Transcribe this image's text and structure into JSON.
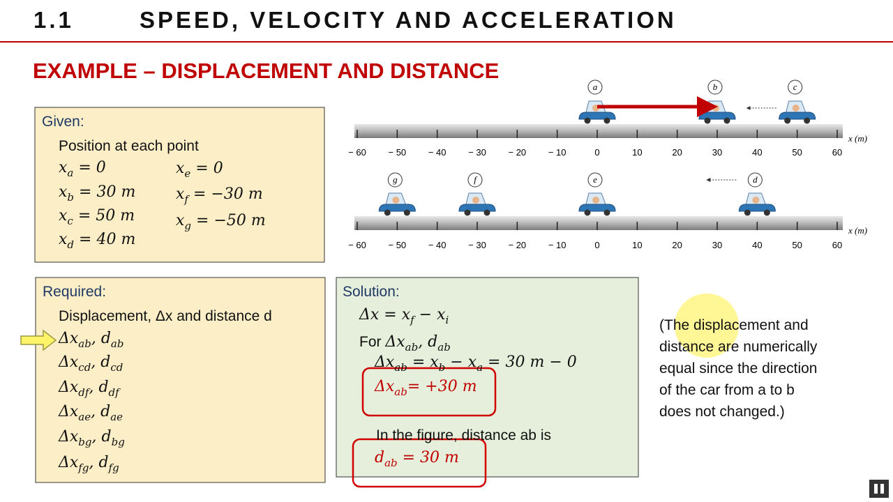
{
  "header": {
    "number": "1.1",
    "title": "SPEED, VELOCITY AND ACCELERATION"
  },
  "subtitle": "EXAMPLE – DISPLACEMENT AND DISTANCE",
  "given": {
    "heading": "Given:",
    "intro": "Position at each point",
    "left": [
      [
        "x",
        "a",
        " = 0"
      ],
      [
        "x",
        "b",
        " = 30 m"
      ],
      [
        "x",
        "c",
        " = 50 m"
      ],
      [
        "x",
        "d",
        " = 40 m"
      ]
    ],
    "right": [
      [
        "x",
        "e",
        " = 0"
      ],
      [
        "x",
        "f",
        " = −30 m"
      ],
      [
        "x",
        "g",
        " = −50 m"
      ]
    ]
  },
  "required": {
    "heading": "Required:",
    "intro": "Displacement, Δx and distance d",
    "items": [
      [
        "Δx",
        "ab",
        ", d",
        "ab"
      ],
      [
        "Δx",
        "cd",
        ", d",
        "cd"
      ],
      [
        "Δx",
        "df",
        ", d",
        "df"
      ],
      [
        "Δx",
        "ae",
        ", d",
        "ae"
      ],
      [
        "Δx",
        "bg",
        ", d",
        "bg"
      ],
      [
        "Δx",
        "fg",
        ", d",
        "fg"
      ]
    ]
  },
  "solution": {
    "heading": "Solution:",
    "formula": [
      "Δx = x",
      "f",
      " − x",
      "i"
    ],
    "for_text": "For ",
    "for_math": [
      "Δx",
      "ab",
      ", d",
      "ab"
    ],
    "step": [
      "Δx",
      "ab",
      " = x",
      "b",
      " − x",
      "a",
      " = 30 m − 0"
    ],
    "result": [
      "Δx",
      "ab",
      "= +30 m"
    ],
    "figure_text": "In the figure, distance ab is",
    "distance": [
      "d",
      "ab",
      " = 30 m"
    ]
  },
  "note": [
    "(The displacement and",
    "distance are numerically",
    "equal since the direction",
    "of the car from a to b",
    "does not changed.)"
  ],
  "numberlines": [
    {
      "axis_label": "x (m)",
      "ticks": [
        {
          "value": -60,
          "label": "− 60"
        },
        {
          "value": -50,
          "label": "− 50"
        },
        {
          "value": -40,
          "label": "− 40"
        },
        {
          "value": -30,
          "label": "− 30"
        },
        {
          "value": -20,
          "label": "− 20"
        },
        {
          "value": -10,
          "label": "− 10"
        },
        0,
        10,
        20,
        30,
        40,
        50,
        60
      ],
      "cars": [
        {
          "label": "a",
          "x": 0
        },
        {
          "label": "b",
          "x": 30
        },
        {
          "label": "c",
          "x": 50
        }
      ]
    },
    {
      "axis_label": "x (m)",
      "ticks": [
        {
          "value": -60,
          "label": "− 60"
        },
        {
          "value": -50,
          "label": "− 50"
        },
        {
          "value": -40,
          "label": "− 40"
        },
        {
          "value": -30,
          "label": "− 30"
        },
        {
          "value": -20,
          "label": "− 20"
        },
        {
          "value": -10,
          "label": "− 10"
        },
        0,
        10,
        20,
        30,
        40,
        50,
        60
      ],
      "cars": [
        {
          "label": "g",
          "x": -50
        },
        {
          "label": "f",
          "x": -30
        },
        {
          "label": "e",
          "x": 0
        },
        {
          "label": "d",
          "x": 40
        }
      ]
    }
  ]
}
